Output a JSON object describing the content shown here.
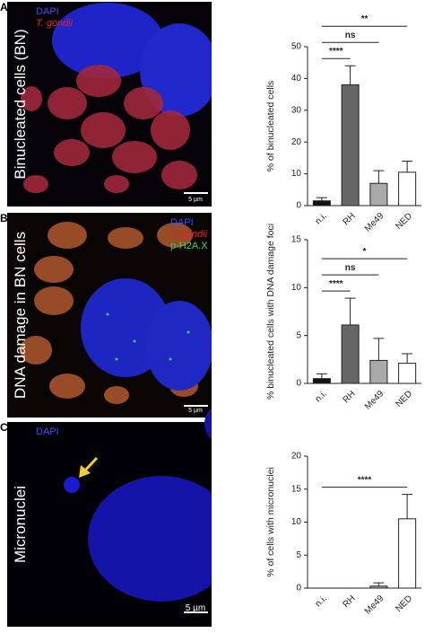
{
  "panels": [
    {
      "label": "A",
      "side_label": "Binucleated cells (BN)",
      "stains": [
        "DAPI",
        "T. gondii"
      ],
      "scale_bar": "5 µm"
    },
    {
      "label": "B",
      "side_label": "DNA damage in BN cells",
      "stains": [
        "DAPI",
        "T. gondii",
        "p-H2A.X"
      ],
      "scale_bar": "5 µm"
    },
    {
      "label": "C",
      "side_label": "Micronuclei",
      "stains": [
        "DAPI"
      ],
      "scale_bar": "5 µm"
    }
  ],
  "chart_data": [
    {
      "type": "bar",
      "y_label": "% of binucleated cells",
      "categories": [
        "n.i.",
        "RH",
        "Me49",
        "NED"
      ],
      "values": [
        1.5,
        38,
        7,
        10.5
      ],
      "errors": [
        1,
        6,
        4,
        3.5
      ],
      "colors": [
        "#111111",
        "#666666",
        "#aaaaaa",
        "#ffffff"
      ],
      "ylim": [
        0,
        50
      ],
      "yticks": [
        0,
        10,
        20,
        30,
        40,
        50
      ],
      "annotations": [
        "****",
        "ns",
        "**"
      ]
    },
    {
      "type": "bar",
      "y_label": "% binucleated cells with DNA damage foci",
      "categories": [
        "n.i.",
        "RH",
        "Me49",
        "NED"
      ],
      "values": [
        0.5,
        6.1,
        2.4,
        2.1
      ],
      "errors": [
        0.5,
        2.8,
        2.3,
        1.0
      ],
      "colors": [
        "#111111",
        "#666666",
        "#aaaaaa",
        "#ffffff"
      ],
      "ylim": [
        0,
        15
      ],
      "yticks": [
        0,
        5,
        10,
        15
      ],
      "annotations": [
        "****",
        "ns",
        "*"
      ]
    },
    {
      "type": "bar",
      "y_label": "% of cells with micronuclei",
      "categories": [
        "n.i.",
        "RH",
        "Me49",
        "NED"
      ],
      "values": [
        0,
        0,
        0.3,
        10.5
      ],
      "errors": [
        0,
        0,
        0.5,
        3.7
      ],
      "colors": [
        "#111111",
        "#666666",
        "#aaaaaa",
        "#ffffff"
      ],
      "ylim": [
        0,
        20
      ],
      "yticks": [
        0,
        5,
        10,
        15,
        20
      ],
      "annotations": [
        "****"
      ]
    }
  ]
}
